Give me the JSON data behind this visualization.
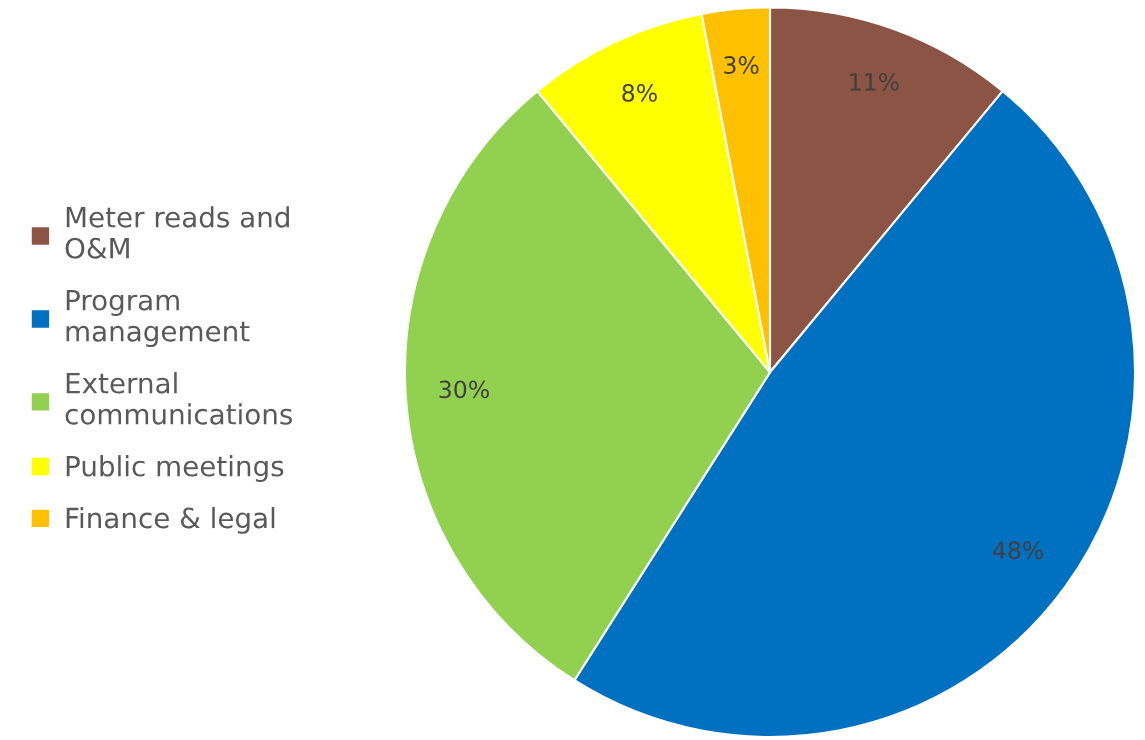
{
  "chart_data": {
    "type": "pie",
    "categories": [
      "Meter reads and O&M",
      "Program management",
      "External communications",
      "Public meetings",
      "Finance & legal"
    ],
    "values": [
      11,
      48,
      30,
      8,
      3
    ],
    "colors": [
      "#8b5444",
      "#0070c0",
      "#92d050",
      "#ffff00",
      "#ffc000"
    ],
    "value_labels": [
      "11%",
      "48%",
      "30%",
      "8%",
      "3%"
    ],
    "legend": "left"
  }
}
